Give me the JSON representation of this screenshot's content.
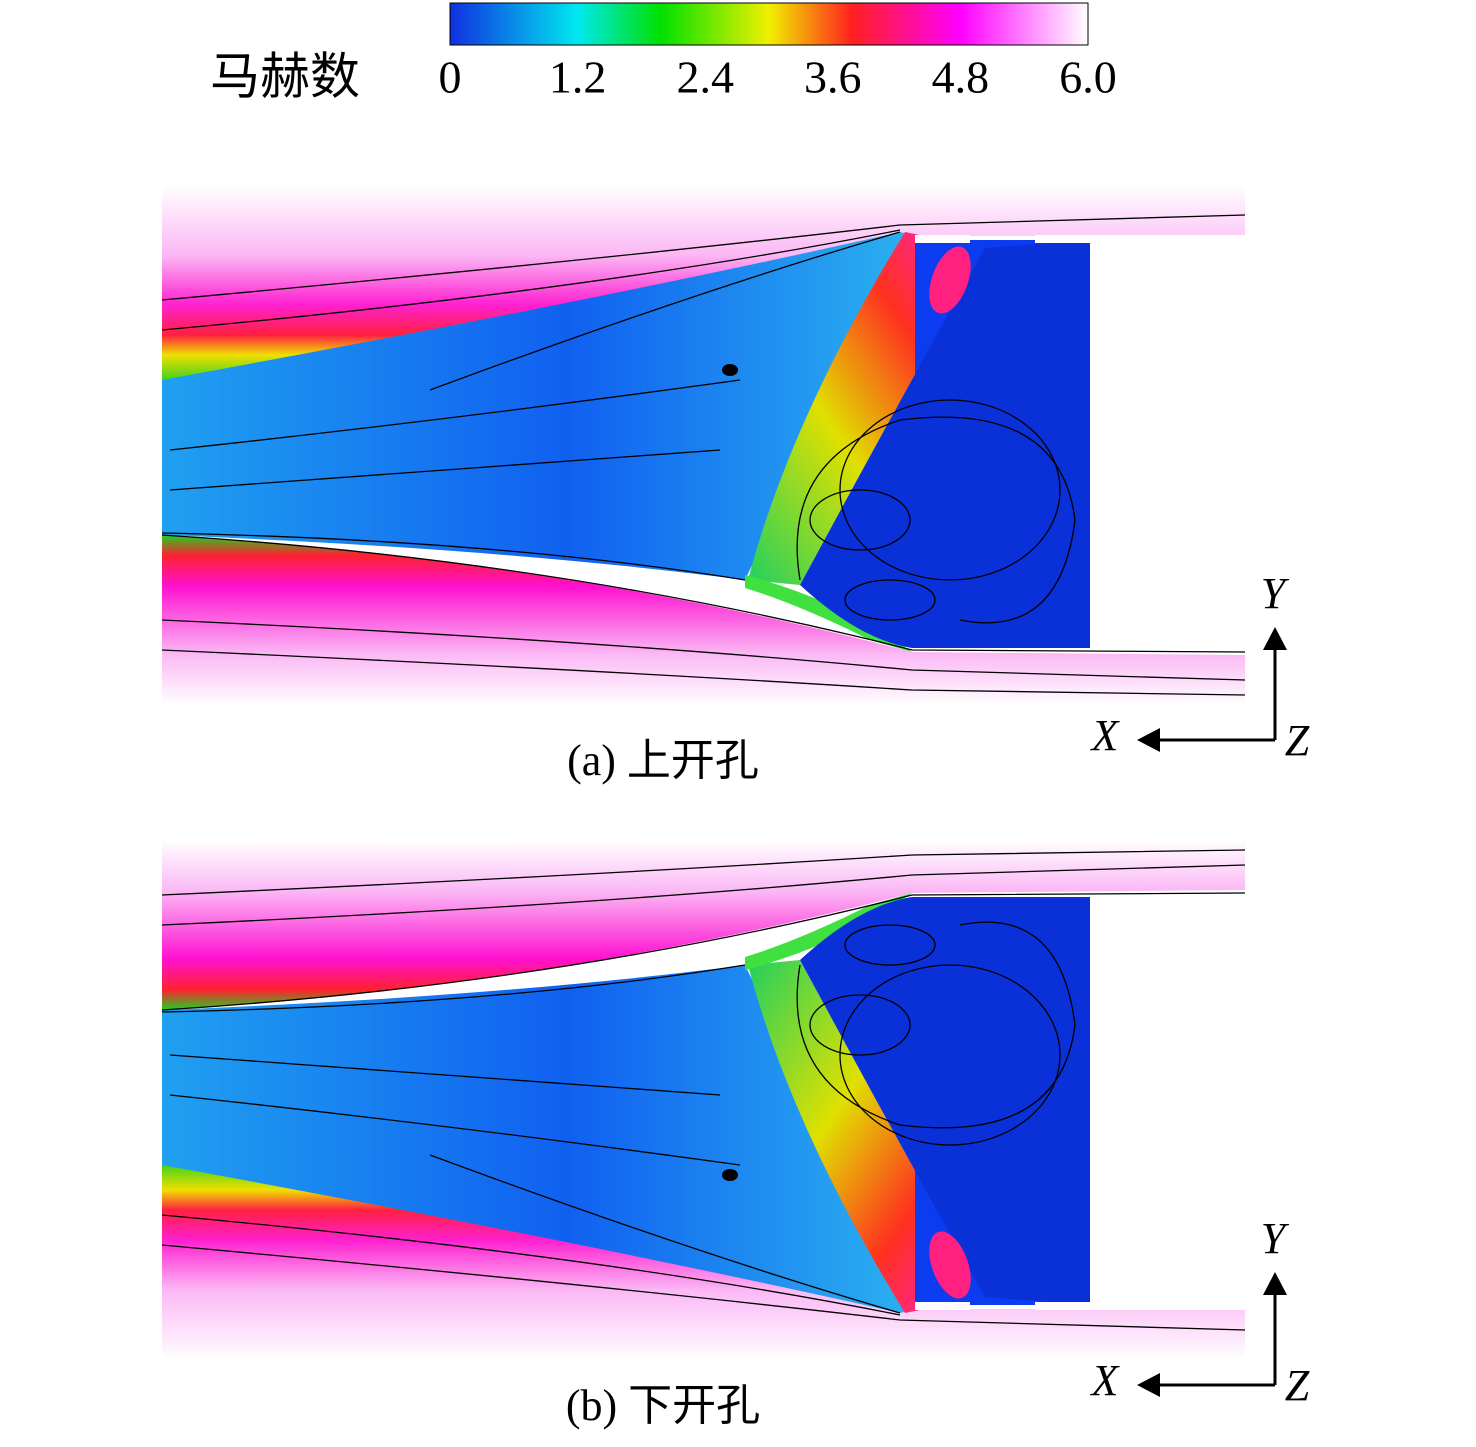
{
  "colorbar": {
    "label": "马赫数",
    "ticks": [
      0,
      1.2,
      2.4,
      3.6,
      4.8,
      {
        "value": 6,
        "label": "6.0"
      }
    ]
  },
  "panels": [
    {
      "caption": "(a) 上开孔",
      "axes": {
        "x": "X",
        "y": "Y",
        "z": "Z"
      }
    },
    {
      "caption": "(b) 下开孔",
      "axes": {
        "x": "X",
        "y": "Y",
        "z": "Z"
      }
    }
  ]
}
